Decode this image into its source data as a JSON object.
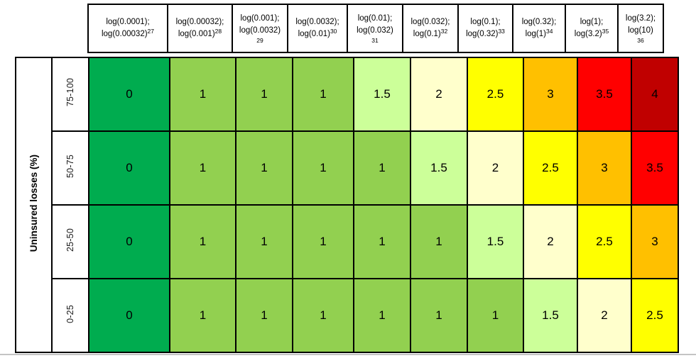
{
  "figure": {
    "y_axis_label": "Uninsured losses (%)"
  },
  "columns": [
    {
      "top": "log(0.0001);",
      "bottom": "log(0.00032)",
      "sup": "27",
      "sup_on_new_line": false
    },
    {
      "top": "log(0.00032);",
      "bottom": "log(0.001)",
      "sup": "28",
      "sup_on_new_line": false
    },
    {
      "top": "log(0.001);",
      "bottom": "log(0.0032)",
      "sup": "29",
      "sup_on_new_line": true
    },
    {
      "top": "log(0.0032);",
      "bottom": "log(0.01)",
      "sup": "30",
      "sup_on_new_line": false
    },
    {
      "top": "log(0.01);",
      "bottom": "log(0.032)",
      "sup": "31",
      "sup_on_new_line": true
    },
    {
      "top": "log(0.032);",
      "bottom": "log(0.1)",
      "sup": "32",
      "sup_on_new_line": false
    },
    {
      "top": "log(0.1);",
      "bottom": "log(0.32)",
      "sup": "33",
      "sup_on_new_line": false
    },
    {
      "top": "log(0.32);",
      "bottom": "log(1)",
      "sup": "34",
      "sup_on_new_line": false
    },
    {
      "top": "log(1);",
      "bottom": "log(3.2)",
      "sup": "35",
      "sup_on_new_line": false
    },
    {
      "top": "log(3.2);",
      "bottom": "log(10)",
      "sup": "36",
      "sup_on_new_line": true
    }
  ],
  "palette": {
    "0": "#00AC4F",
    "1": "#92D050",
    "1.5": "#CCFF99",
    "2": "#FFFFCC",
    "2.5": "#FFFF00",
    "3": "#FFC000",
    "3.5": "#FF0000",
    "4": "#C00000"
  },
  "chart_data": {
    "type": "heatmap",
    "title": "",
    "xlabel": "",
    "ylabel": "Uninsured losses (%)",
    "x_categories": [
      "log(0.0001); log(0.00032)^27",
      "log(0.00032); log(0.001)^28",
      "log(0.001); log(0.0032)^29",
      "log(0.0032); log(0.01)^30",
      "log(0.01); log(0.032)^31",
      "log(0.032); log(0.1)^32",
      "log(0.1); log(0.32)^33",
      "log(0.32); log(1)^34",
      "log(1); log(3.2)^35",
      "log(3.2); log(10)^36"
    ],
    "y_categories": [
      "75-100",
      "50-75",
      "25-50",
      "0-25"
    ],
    "values": [
      [
        0,
        1,
        1,
        1,
        1.5,
        2,
        2.5,
        3,
        3.5,
        4
      ],
      [
        0,
        1,
        1,
        1,
        1,
        1.5,
        2,
        2.5,
        3,
        3.5
      ],
      [
        0,
        1,
        1,
        1,
        1,
        1,
        1.5,
        2,
        2.5,
        3
      ],
      [
        0,
        1,
        1,
        1,
        1,
        1,
        1,
        1.5,
        2,
        2.5
      ]
    ],
    "value_range": [
      0,
      4
    ],
    "color_scale": [
      {
        "value": 0,
        "color": "#00AC4F"
      },
      {
        "value": 1,
        "color": "#92D050"
      },
      {
        "value": 1.5,
        "color": "#CCFF99"
      },
      {
        "value": 2,
        "color": "#FFFFCC"
      },
      {
        "value": 2.5,
        "color": "#FFFF00"
      },
      {
        "value": 3,
        "color": "#FFC000"
      },
      {
        "value": 3.5,
        "color": "#FF0000"
      },
      {
        "value": 4,
        "color": "#C00000"
      }
    ],
    "legend_position": "none",
    "grid": true
  }
}
